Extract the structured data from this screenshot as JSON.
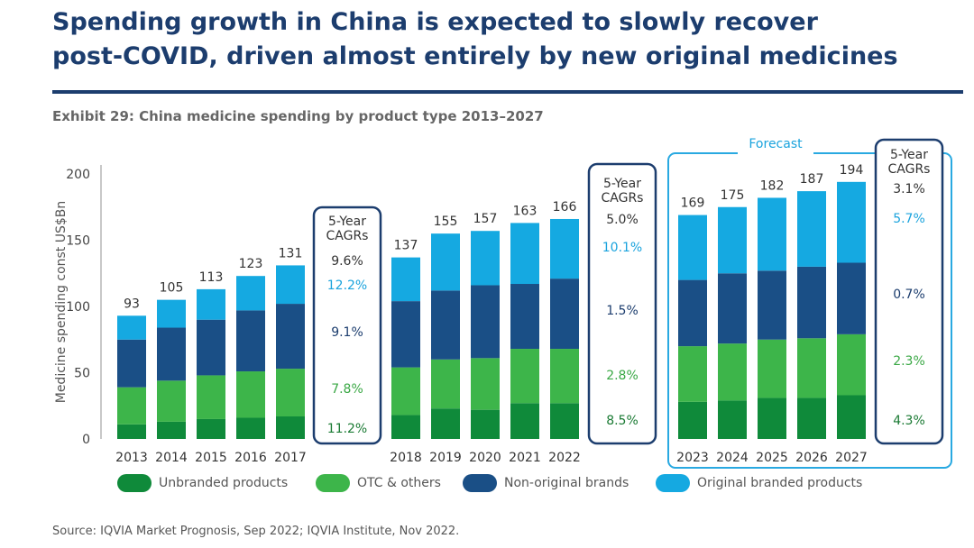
{
  "headline": {
    "line1": "Spending growth in China is expected to slowly recover",
    "line2": "post-COVID, driven almost entirely by new original medicines"
  },
  "exhibit_title": "Exhibit 29: China medicine spending by product type 2013–2027",
  "source": "Source: IQVIA Market Prognosis, Sep 2022; IQVIA Institute, Nov 2022.",
  "colors": {
    "unbranded": "#0f8a3a",
    "otc": "#3db54a",
    "non_original": "#1a4f86",
    "original": "#15a9e1",
    "frame": "#1c3d6e",
    "forecast_frame": "#29a9e1"
  },
  "legend": [
    {
      "label": "Unbranded products",
      "color_key": "unbranded"
    },
    {
      "label": "OTC & others",
      "color_key": "otc"
    },
    {
      "label": "Non-original brands",
      "color_key": "non_original"
    },
    {
      "label": "Original branded products",
      "color_key": "original"
    }
  ],
  "chart_data": {
    "type": "bar",
    "stacked": true,
    "ylabel": "Medicine spending const US$Bn",
    "ylim": [
      0,
      200
    ],
    "yticks": [
      0,
      50,
      100,
      150,
      200
    ],
    "forecast_label": "Forecast",
    "categories": [
      "2013",
      "2014",
      "2015",
      "2016",
      "2017",
      "2018",
      "2019",
      "2020",
      "2021",
      "2022",
      "2023",
      "2024",
      "2025",
      "2026",
      "2027"
    ],
    "totals": [
      93,
      105,
      113,
      123,
      131,
      137,
      155,
      157,
      163,
      166,
      169,
      175,
      182,
      187,
      194
    ],
    "series": [
      {
        "name": "Unbranded products",
        "color_key": "unbranded",
        "values": [
          11,
          13,
          15,
          16,
          17,
          18,
          23,
          22,
          27,
          27,
          28,
          29,
          31,
          31,
          33
        ]
      },
      {
        "name": "OTC & others",
        "color_key": "otc",
        "values": [
          28,
          31,
          33,
          35,
          36,
          36,
          37,
          39,
          41,
          41,
          42,
          43,
          44,
          45,
          46
        ]
      },
      {
        "name": "Non-original brands",
        "color_key": "non_original",
        "values": [
          36,
          40,
          42,
          46,
          49,
          50,
          52,
          55,
          49,
          53,
          50,
          53,
          52,
          54,
          54
        ]
      },
      {
        "name": "Original branded products",
        "color_key": "original",
        "values": [
          18,
          21,
          23,
          26,
          29,
          33,
          43,
          41,
          46,
          45,
          49,
          50,
          55,
          57,
          61
        ]
      }
    ],
    "cagr_panels": [
      {
        "title_line1": "5-Year",
        "title_line2": "CAGRs",
        "values": [
          "9.6%",
          "12.2%",
          "9.1%",
          "7.8%",
          "11.2%"
        ],
        "color_keys": [
          "total",
          "original",
          "non_original",
          "otc",
          "unbranded"
        ]
      },
      {
        "title_line1": "5-Year",
        "title_line2": "CAGRs",
        "values": [
          "5.0%",
          "10.1%",
          "1.5%",
          "2.8%",
          "8.5%"
        ],
        "color_keys": [
          "total",
          "original",
          "non_original",
          "otc",
          "unbranded"
        ]
      },
      {
        "title_line1": "5-Year",
        "title_line2": "CAGRs",
        "values": [
          "3.1%",
          "5.7%",
          "0.7%",
          "2.3%",
          "4.3%"
        ],
        "color_keys": [
          "total",
          "original",
          "non_original",
          "otc",
          "unbranded"
        ]
      }
    ]
  }
}
